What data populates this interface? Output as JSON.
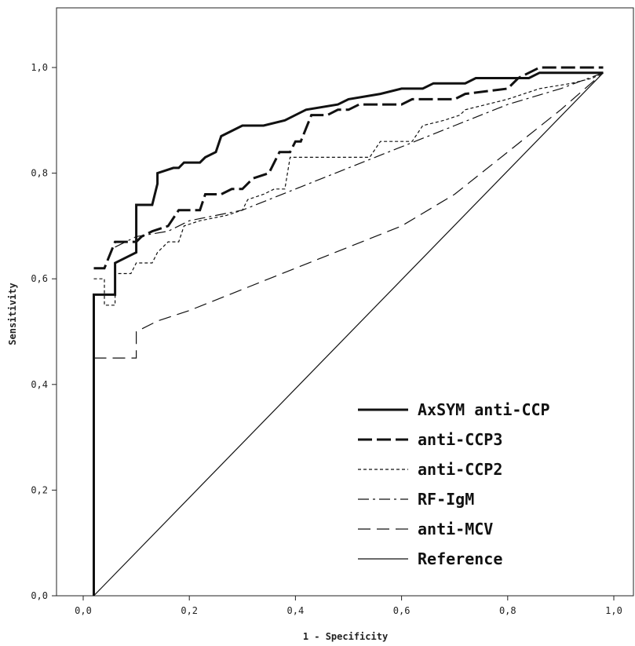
{
  "chart_data": {
    "type": "line",
    "xlabel": "1 - Specificity",
    "ylabel": "Sensitivity",
    "xlim": [
      0,
      1
    ],
    "ylim": [
      0,
      1
    ],
    "x_ticks": [
      "0,0",
      "0,2",
      "0,4",
      "0,6",
      "0,8",
      "1,0"
    ],
    "y_ticks": [
      "0,0",
      "0,2",
      "0,4",
      "0,6",
      "0,8",
      "1,0"
    ],
    "legend_position": "bottom-right",
    "grid": false,
    "series": [
      {
        "name": "AxSYM anti-CCP",
        "style": "solid-thick",
        "points": [
          [
            0.02,
            0.0
          ],
          [
            0.02,
            0.57
          ],
          [
            0.06,
            0.57
          ],
          [
            0.06,
            0.63
          ],
          [
            0.08,
            0.64
          ],
          [
            0.1,
            0.65
          ],
          [
            0.1,
            0.74
          ],
          [
            0.13,
            0.74
          ],
          [
            0.14,
            0.78
          ],
          [
            0.14,
            0.8
          ],
          [
            0.17,
            0.81
          ],
          [
            0.18,
            0.81
          ],
          [
            0.19,
            0.82
          ],
          [
            0.22,
            0.82
          ],
          [
            0.23,
            0.83
          ],
          [
            0.25,
            0.84
          ],
          [
            0.26,
            0.87
          ],
          [
            0.3,
            0.89
          ],
          [
            0.34,
            0.89
          ],
          [
            0.38,
            0.9
          ],
          [
            0.42,
            0.92
          ],
          [
            0.48,
            0.93
          ],
          [
            0.5,
            0.94
          ],
          [
            0.56,
            0.95
          ],
          [
            0.6,
            0.96
          ],
          [
            0.64,
            0.96
          ],
          [
            0.66,
            0.97
          ],
          [
            0.72,
            0.97
          ],
          [
            0.74,
            0.98
          ],
          [
            0.84,
            0.98
          ],
          [
            0.86,
            0.99
          ],
          [
            0.98,
            0.99
          ]
        ]
      },
      {
        "name": "anti-CCP3",
        "style": "long-dash-thick",
        "points": [
          [
            0.02,
            0.62
          ],
          [
            0.04,
            0.62
          ],
          [
            0.06,
            0.67
          ],
          [
            0.1,
            0.67
          ],
          [
            0.11,
            0.68
          ],
          [
            0.13,
            0.69
          ],
          [
            0.16,
            0.7
          ],
          [
            0.18,
            0.73
          ],
          [
            0.22,
            0.73
          ],
          [
            0.23,
            0.76
          ],
          [
            0.26,
            0.76
          ],
          [
            0.28,
            0.77
          ],
          [
            0.3,
            0.77
          ],
          [
            0.32,
            0.79
          ],
          [
            0.35,
            0.8
          ],
          [
            0.37,
            0.84
          ],
          [
            0.39,
            0.84
          ],
          [
            0.4,
            0.86
          ],
          [
            0.41,
            0.86
          ],
          [
            0.43,
            0.91
          ],
          [
            0.46,
            0.91
          ],
          [
            0.48,
            0.92
          ],
          [
            0.5,
            0.92
          ],
          [
            0.52,
            0.93
          ],
          [
            0.6,
            0.93
          ],
          [
            0.62,
            0.94
          ],
          [
            0.7,
            0.94
          ],
          [
            0.72,
            0.95
          ],
          [
            0.8,
            0.96
          ],
          [
            0.82,
            0.98
          ],
          [
            0.86,
            1.0
          ],
          [
            0.98,
            1.0
          ]
        ]
      },
      {
        "name": "anti-CCP2",
        "style": "short-dash",
        "points": [
          [
            0.02,
            0.6
          ],
          [
            0.04,
            0.6
          ],
          [
            0.04,
            0.55
          ],
          [
            0.06,
            0.55
          ],
          [
            0.06,
            0.61
          ],
          [
            0.09,
            0.61
          ],
          [
            0.1,
            0.63
          ],
          [
            0.13,
            0.63
          ],
          [
            0.14,
            0.65
          ],
          [
            0.16,
            0.67
          ],
          [
            0.18,
            0.67
          ],
          [
            0.19,
            0.7
          ],
          [
            0.22,
            0.71
          ],
          [
            0.27,
            0.72
          ],
          [
            0.3,
            0.73
          ],
          [
            0.31,
            0.75
          ],
          [
            0.34,
            0.76
          ],
          [
            0.36,
            0.77
          ],
          [
            0.38,
            0.77
          ],
          [
            0.39,
            0.83
          ],
          [
            0.54,
            0.83
          ],
          [
            0.56,
            0.86
          ],
          [
            0.62,
            0.86
          ],
          [
            0.64,
            0.89
          ],
          [
            0.68,
            0.9
          ],
          [
            0.71,
            0.91
          ],
          [
            0.72,
            0.92
          ],
          [
            0.8,
            0.94
          ],
          [
            0.86,
            0.96
          ],
          [
            0.92,
            0.97
          ],
          [
            0.96,
            0.98
          ],
          [
            0.98,
            0.99
          ]
        ]
      },
      {
        "name": "RF-IgM",
        "style": "dash-dot",
        "points": [
          [
            0.06,
            0.66
          ],
          [
            0.1,
            0.68
          ],
          [
            0.16,
            0.69
          ],
          [
            0.2,
            0.71
          ],
          [
            0.3,
            0.73
          ],
          [
            0.4,
            0.77
          ],
          [
            0.5,
            0.81
          ],
          [
            0.6,
            0.85
          ],
          [
            0.7,
            0.89
          ],
          [
            0.8,
            0.93
          ],
          [
            0.9,
            0.96
          ],
          [
            0.98,
            0.99
          ]
        ]
      },
      {
        "name": "anti-MCV",
        "style": "long-dash",
        "points": [
          [
            0.02,
            0.45
          ],
          [
            0.1,
            0.45
          ],
          [
            0.1,
            0.5
          ],
          [
            0.14,
            0.52
          ],
          [
            0.2,
            0.54
          ],
          [
            0.3,
            0.58
          ],
          [
            0.4,
            0.62
          ],
          [
            0.5,
            0.66
          ],
          [
            0.6,
            0.7
          ],
          [
            0.7,
            0.76
          ],
          [
            0.8,
            0.84
          ],
          [
            0.9,
            0.92
          ],
          [
            0.98,
            0.99
          ]
        ]
      },
      {
        "name": "Reference",
        "style": "thin-solid",
        "points": [
          [
            0.02,
            0.0
          ],
          [
            0.98,
            0.99
          ]
        ]
      }
    ]
  }
}
